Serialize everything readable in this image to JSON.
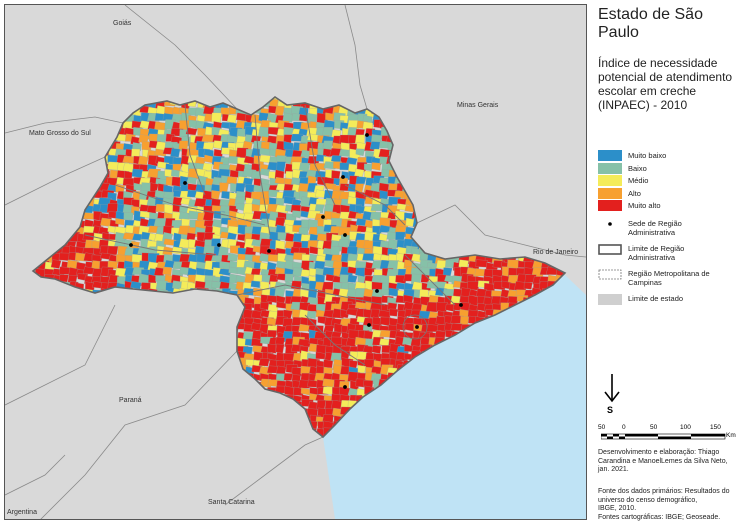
{
  "map": {
    "neighbors": {
      "goias": "Goiás",
      "minas_gerais": "Minas Gerais",
      "mato_grosso_do_sul": "Mato Grosso do Sul",
      "rio_de_janeiro": "Rio de Janeiro",
      "parana": "Paraná",
      "santa_catarina": "Santa Catarina",
      "argentina": "Argentina"
    },
    "colors": {
      "ocean": "#bfe3f5",
      "outside": "#d9d9d9",
      "muito_baixo": "#2c8fc9",
      "baixo": "#86c1a8",
      "medio": "#f4ec5a",
      "alto": "#f7a030",
      "muito_alto": "#e3201e"
    }
  },
  "side": {
    "title": "Estado de São Paulo",
    "subtitle": "Índice de necessidade potencial de atendimento escolar em creche (INPAEC) - 2010"
  },
  "legend": {
    "classes": [
      {
        "label": "Muito baixo",
        "color": "#2c8fc9"
      },
      {
        "label": "Baixo",
        "color": "#86c1a8"
      },
      {
        "label": "Médio",
        "color": "#f4ec5a"
      },
      {
        "label": "Alto",
        "color": "#f7a030"
      },
      {
        "label": "Muito alto",
        "color": "#e3201e"
      }
    ],
    "sede": "Sede de Região Administrativa",
    "limite_regiao": "Limite de Região Administrativa",
    "rm_campinas": "Região Metropolitana de Campinas",
    "limite_estado": "Limite de estado"
  },
  "north": {
    "letter": "S"
  },
  "scale": {
    "ticks": [
      "50",
      "0",
      "50",
      "100",
      "150"
    ],
    "unit": "Km"
  },
  "credits": {
    "line1": "Desenvolvimento e elaboração: Thiago",
    "line2": "Carandina e ManoelLemes da Silva Neto,",
    "line3": "jan. 2021."
  },
  "sources": {
    "line1": "Fonte dos dados primários: Resultados do",
    "line2": "universo do censo demográfico,",
    "line3": "IBGE, 2010.",
    "line4": "Fontes cartográficas: IBGE; Geoseade."
  }
}
